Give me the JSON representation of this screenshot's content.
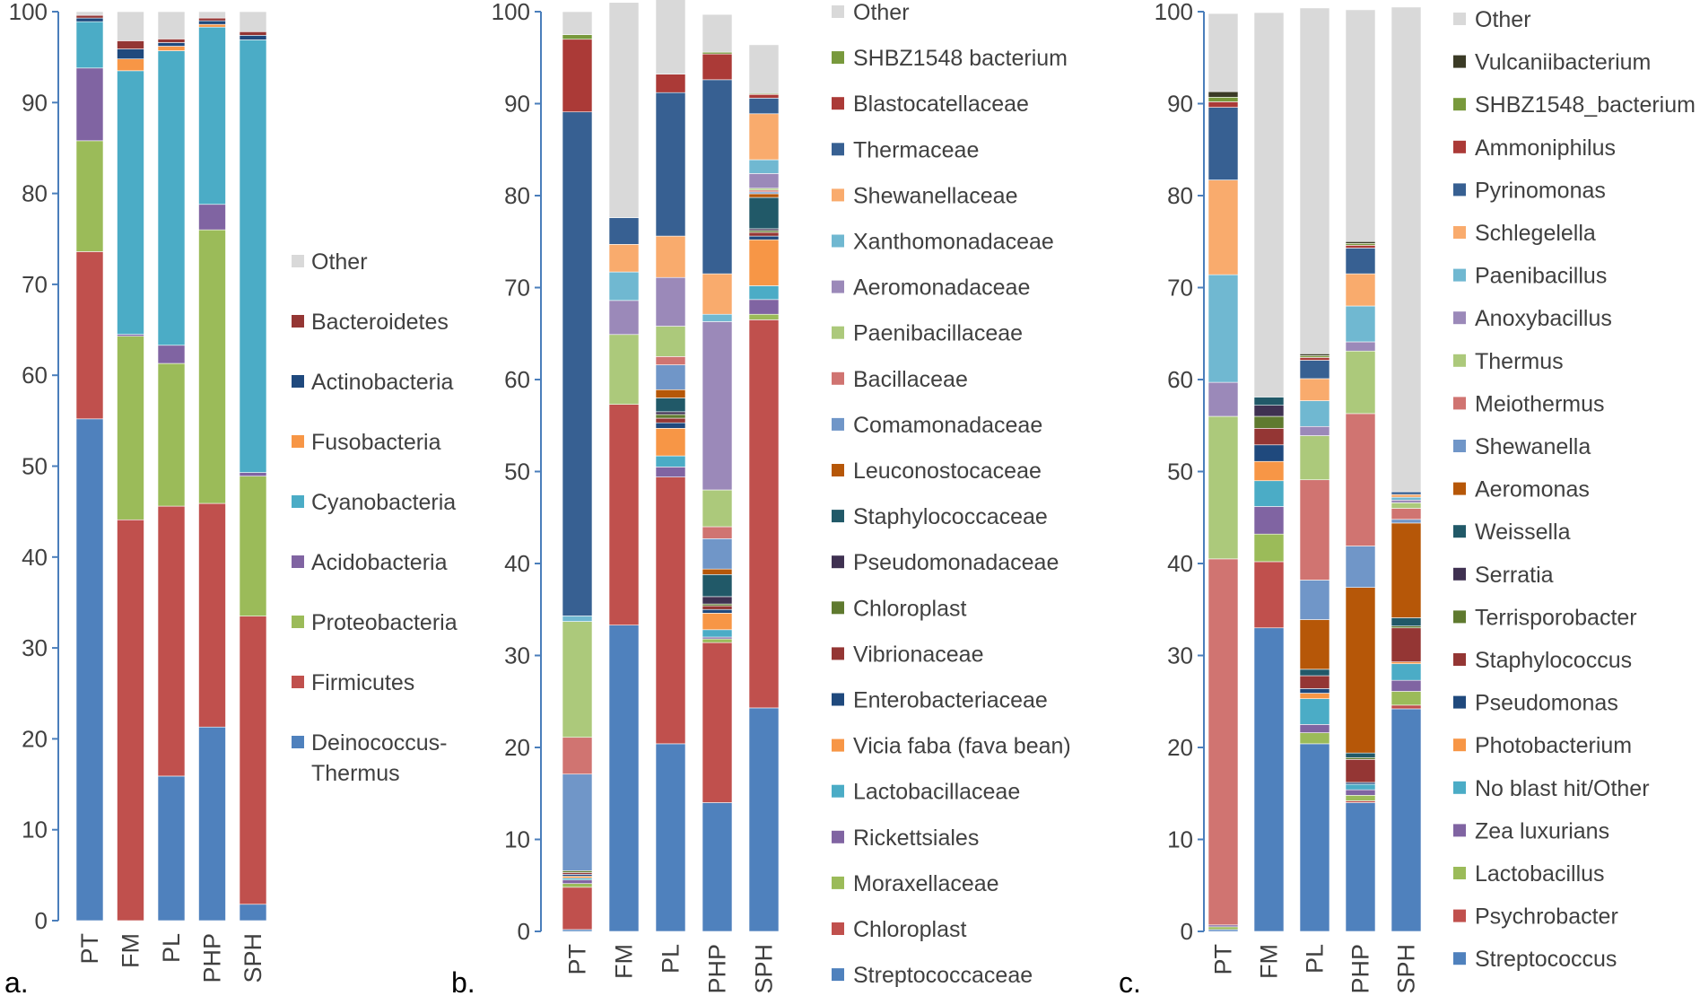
{
  "figure": {
    "panels": [
      "a.",
      "b.",
      "c."
    ]
  },
  "chart_data": [
    {
      "type": "bar",
      "stacked": true,
      "panel_label": "a.",
      "categories": [
        "PT",
        "FM",
        "PL",
        "PHP",
        "SPH"
      ],
      "yticks": [
        "0",
        "10",
        "20",
        "30",
        "40",
        "50",
        "60",
        "70",
        "80",
        "90",
        "100"
      ],
      "ylim": [
        0,
        100
      ],
      "series": [
        {
          "name": "Deinococcus-Thermus",
          "color": "#4f81bd",
          "values": [
            55.2,
            0,
            15.9,
            21.3,
            1.8
          ]
        },
        {
          "name": "Firmicutes",
          "color": "#c0504d",
          "values": [
            18.4,
            44.1,
            29.7,
            24.6,
            31.7
          ]
        },
        {
          "name": "Proteobacteria",
          "color": "#9bbb59",
          "values": [
            12.2,
            20.2,
            15.7,
            30.1,
            15.4
          ]
        },
        {
          "name": "Acidobacteria",
          "color": "#8064a2",
          "values": [
            8,
            0.2,
            2,
            2.8,
            0.4
          ]
        },
        {
          "name": "Cyanobacteria",
          "color": "#4bacc6",
          "values": [
            5.1,
            29,
            32.4,
            19.5,
            47.6
          ]
        },
        {
          "name": "Fusobacteria",
          "color": "#f79646",
          "values": [
            0,
            1.3,
            0.5,
            0.3,
            0
          ]
        },
        {
          "name": "Actinobacteria",
          "color": "#1f497d",
          "values": [
            0.4,
            1.1,
            0.4,
            0.4,
            0.5
          ]
        },
        {
          "name": "Bacteroidetes",
          "color": "#943634",
          "values": [
            0.3,
            0.9,
            0.4,
            0.3,
            0.4
          ]
        },
        {
          "name": "Other",
          "color": "#d9d9d9",
          "values": [
            0.4,
            3.2,
            3,
            0.7,
            2.2
          ]
        }
      ],
      "legend": [
        {
          "name": "Other",
          "color": "#d9d9d9"
        },
        {
          "name": "Bacteroidetes",
          "color": "#943634"
        },
        {
          "name": "Actinobacteria",
          "color": "#1f497d"
        },
        {
          "name": "Fusobacteria",
          "color": "#f79646"
        },
        {
          "name": "Cyanobacteria",
          "color": "#4bacc6"
        },
        {
          "name": "Acidobacteria",
          "color": "#8064a2"
        },
        {
          "name": "Proteobacteria",
          "color": "#9bbb59"
        },
        {
          "name": "Firmicutes",
          "color": "#c0504d"
        },
        {
          "name": "Deinococcus-",
          "line2": "Thermus",
          "color": "#4f81bd"
        }
      ]
    },
    {
      "type": "bar",
      "stacked": true,
      "panel_label": "b.",
      "categories": [
        "PT",
        "FM",
        "PL",
        "PHP",
        "SPH"
      ],
      "yticks": [
        "0",
        "10",
        "20",
        "30",
        "40",
        "50",
        "60",
        "70",
        "80",
        "90",
        "100"
      ],
      "ylim": [
        0,
        100
      ],
      "series": [
        {
          "name": "Streptococcaceae",
          "color": "#4f81bd",
          "values": [
            0.2,
            33.3,
            20.4,
            14,
            24.3
          ]
        },
        {
          "name": "Chloroplast",
          "color": "#c0504d",
          "values": [
            4.6,
            24,
            29,
            17.4,
            42.2
          ]
        },
        {
          "name": "Moraxellaceae",
          "color": "#9bbb59",
          "values": [
            0.4,
            0,
            0,
            0.4,
            0.6
          ]
        },
        {
          "name": "Rickettsiales",
          "color": "#8064a2",
          "values": [
            0.4,
            0,
            1.1,
            0.2,
            1.6
          ]
        },
        {
          "name": "Lactobacillaceae",
          "color": "#4bacc6",
          "values": [
            0.2,
            0,
            1.2,
            0.8,
            1.5
          ]
        },
        {
          "name": "Vicia faba (fava bean)",
          "color": "#f79646",
          "values": [
            0.2,
            0,
            3,
            1.8,
            5
          ]
        },
        {
          "name": "Enterobacteriaceae",
          "color": "#1f497d",
          "values": [
            0.2,
            0,
            0.6,
            0.4,
            0.4
          ]
        },
        {
          "name": "Vibrionaceae",
          "color": "#943634",
          "values": [
            0.2,
            0,
            0.5,
            0.4,
            0.4
          ]
        },
        {
          "name": "Chloroplast",
          "color": "#5f7a2f",
          "values": [
            0.2,
            0,
            0.4,
            0.2,
            0.2
          ]
        },
        {
          "name": "Pseudomonadaceae",
          "color": "#3f3151",
          "values": [
            0,
            0,
            0.3,
            0.8,
            0.2
          ]
        },
        {
          "name": "Staphylococcaceae",
          "color": "#215968",
          "values": [
            0,
            0,
            1.5,
            2.4,
            3.4
          ]
        },
        {
          "name": "Leuconostocaceae",
          "color": "#b65708",
          "values": [
            0,
            0,
            0.9,
            0.6,
            0.4
          ]
        },
        {
          "name": "Comamonadaceae",
          "color": "#7096c8",
          "values": [
            10.5,
            0,
            2.7,
            3.3,
            0.2
          ]
        },
        {
          "name": "Bacillaceae",
          "color": "#d07471",
          "values": [
            4,
            0,
            0.9,
            1.3,
            0.2
          ]
        },
        {
          "name": "Paenibacillaceae",
          "color": "#acc97b",
          "values": [
            12.6,
            7.6,
            3.3,
            4,
            0.2
          ]
        },
        {
          "name": "Aeromonadaceae",
          "color": "#9b89b9",
          "values": [
            0,
            3.7,
            5.3,
            18.3,
            1.6
          ]
        },
        {
          "name": "Xanthomonadaceae",
          "color": "#70b8d1",
          "values": [
            0.6,
            3.1,
            0,
            0.8,
            1.5
          ]
        },
        {
          "name": "Shewanellaceae",
          "color": "#f9ab6d",
          "values": [
            0,
            3,
            4.5,
            4.4,
            5
          ]
        },
        {
          "name": "Thermaceae",
          "color": "#376092",
          "values": [
            54.8,
            2.9,
            15.6,
            21.1,
            1.7
          ]
        },
        {
          "name": "Blastocatellaceae",
          "color": "#ab3a37",
          "values": [
            7.9,
            0,
            2,
            2.8,
            0.4
          ]
        },
        {
          "name": "SHBZ1548 bacterium",
          "color": "#78993c",
          "values": [
            0.5,
            0,
            0,
            0.2,
            0.1
          ]
        },
        {
          "name": "Other",
          "color": "#d9d9d9",
          "values": [
            2.5,
            23.4,
            8.3,
            4.1,
            5.3
          ]
        }
      ],
      "legend": [
        {
          "name": "Other",
          "color": "#d9d9d9"
        },
        {
          "name": "SHBZ1548 bacterium",
          "color": "#78993c"
        },
        {
          "name": "Blastocatellaceae",
          "color": "#ab3a37"
        },
        {
          "name": "Thermaceae",
          "color": "#376092"
        },
        {
          "name": "Shewanellaceae",
          "color": "#f9ab6d"
        },
        {
          "name": "Xanthomonadaceae",
          "color": "#70b8d1"
        },
        {
          "name": "Aeromonadaceae",
          "color": "#9b89b9"
        },
        {
          "name": "Paenibacillaceae",
          "color": "#acc97b"
        },
        {
          "name": "Bacillaceae",
          "color": "#d07471"
        },
        {
          "name": "Comamonadaceae",
          "color": "#7096c8"
        },
        {
          "name": "Leuconostocaceae",
          "color": "#b65708"
        },
        {
          "name": "Staphylococcaceae",
          "color": "#215968"
        },
        {
          "name": "Pseudomonadaceae",
          "color": "#3f3151"
        },
        {
          "name": "Chloroplast",
          "color": "#5f7a2f"
        },
        {
          "name": "Vibrionaceae",
          "color": "#943634"
        },
        {
          "name": "Enterobacteriaceae",
          "color": "#1f497d"
        },
        {
          "name": "Vicia faba (fava bean)",
          "color": "#f79646"
        },
        {
          "name": "Lactobacillaceae",
          "color": "#4bacc6"
        },
        {
          "name": "Rickettsiales",
          "color": "#8064a2"
        },
        {
          "name": "Moraxellaceae",
          "color": "#9bbb59"
        },
        {
          "name": "Chloroplast",
          "color": "#c0504d"
        },
        {
          "name": "Streptococcaceae",
          "color": "#4f81bd"
        }
      ]
    },
    {
      "type": "bar",
      "stacked": true,
      "panel_label": "c.",
      "categories": [
        "PT",
        "FM",
        "PL",
        "PHP",
        "SPH"
      ],
      "yticks": [
        "0",
        "10",
        "20",
        "30",
        "40",
        "50",
        "60",
        "70",
        "80",
        "90",
        "100"
      ],
      "ylim": [
        0,
        100
      ],
      "series": [
        {
          "name": "Streptococcus",
          "color": "#4f81bd",
          "values": [
            0.2,
            33,
            20.4,
            14,
            24.2
          ]
        },
        {
          "name": "Psychrobacter",
          "color": "#c0504d",
          "values": [
            0,
            7.2,
            0,
            0.2,
            0.4
          ]
        },
        {
          "name": "Lactobacillus",
          "color": "#9bbb59",
          "values": [
            0.3,
            3,
            1.2,
            0.6,
            1.5
          ]
        },
        {
          "name": "Zea luxurians",
          "color": "#8064a2",
          "values": [
            0.2,
            3,
            0.9,
            0.6,
            1.2
          ]
        },
        {
          "name": "No blast hit/Other",
          "color": "#4bacc6",
          "values": [
            0,
            2.8,
            2.8,
            0.6,
            1.8
          ]
        },
        {
          "name": "Photobacterium",
          "color": "#f79646",
          "values": [
            0,
            2.1,
            0.6,
            0,
            0.2
          ]
        },
        {
          "name": "Pseudomonas",
          "color": "#1f497d",
          "values": [
            0,
            1.8,
            0.5,
            0.2,
            0
          ]
        },
        {
          "name": "Staphylococcus",
          "color": "#943634",
          "values": [
            0,
            1.8,
            1.4,
            2.5,
            3.7
          ]
        },
        {
          "name": "Terrisporobacter",
          "color": "#5f7a2f",
          "values": [
            0,
            1.3,
            0,
            0.2,
            0.2
          ]
        },
        {
          "name": "Serratia",
          "color": "#3f3151",
          "values": [
            0,
            1.2,
            0,
            0,
            0
          ]
        },
        {
          "name": "Weissella",
          "color": "#215968",
          "values": [
            0,
            0.9,
            0.7,
            0.5,
            0.9
          ]
        },
        {
          "name": "Aeromonas",
          "color": "#b65708",
          "values": [
            0,
            0,
            5.4,
            18,
            10.3
          ]
        },
        {
          "name": "Shewanella",
          "color": "#7096c8",
          "values": [
            0,
            0,
            4.3,
            4.5,
            0.4
          ]
        },
        {
          "name": "Meiothermus",
          "color": "#d07471",
          "values": [
            39.8,
            0,
            10.9,
            14.4,
            1.2
          ]
        },
        {
          "name": "Thermus",
          "color": "#acc97b",
          "values": [
            15.5,
            0,
            4.8,
            6.8,
            0.6
          ]
        },
        {
          "name": "Anoxybacillus",
          "color": "#9b89b9",
          "values": [
            3.7,
            0,
            1,
            1,
            0.3
          ]
        },
        {
          "name": "Paenibacillus",
          "color": "#70b8d1",
          "values": [
            11.7,
            0,
            2.8,
            3.9,
            0.3
          ]
        },
        {
          "name": "Schlegelella",
          "color": "#f9ab6d",
          "values": [
            10.3,
            0,
            2.4,
            3.5,
            0.3
          ]
        },
        {
          "name": "Pyrinomonas",
          "color": "#376092",
          "values": [
            7.9,
            0,
            2,
            2.8,
            0.3
          ]
        },
        {
          "name": "Ammoniphilus",
          "color": "#ab3a37",
          "values": [
            0.6,
            0,
            0.3,
            0.3,
            0
          ]
        },
        {
          "name": "SHBZ1548_bacterium",
          "color": "#78993c",
          "values": [
            0.5,
            0,
            0.2,
            0.2,
            0
          ]
        },
        {
          "name": "Vulcaniibacterium",
          "color": "#3b3b26",
          "values": [
            0.6,
            0,
            0.2,
            0.2,
            0
          ]
        },
        {
          "name": "Other",
          "color": "#d9d9d9",
          "values": [
            8.5,
            41.8,
            37.6,
            25.2,
            52.7
          ]
        }
      ],
      "legend": [
        {
          "name": "Other",
          "color": "#d9d9d9"
        },
        {
          "name": "Vulcaniibacterium",
          "color": "#3b3b26"
        },
        {
          "name": "SHBZ1548_bacterium",
          "color": "#78993c"
        },
        {
          "name": "Ammoniphilus",
          "color": "#ab3a37"
        },
        {
          "name": "Pyrinomonas",
          "color": "#376092"
        },
        {
          "name": "Schlegelella",
          "color": "#f9ab6d"
        },
        {
          "name": "Paenibacillus",
          "color": "#70b8d1"
        },
        {
          "name": "Anoxybacillus",
          "color": "#9b89b9"
        },
        {
          "name": "Thermus",
          "color": "#acc97b"
        },
        {
          "name": "Meiothermus",
          "color": "#d07471"
        },
        {
          "name": "Shewanella",
          "color": "#7096c8"
        },
        {
          "name": "Aeromonas",
          "color": "#b65708"
        },
        {
          "name": "Weissella",
          "color": "#215968"
        },
        {
          "name": "Serratia",
          "color": "#3f3151"
        },
        {
          "name": "Terrisporobacter",
          "color": "#5f7a2f"
        },
        {
          "name": "Staphylococcus",
          "color": "#943634"
        },
        {
          "name": "Pseudomonas",
          "color": "#1f497d"
        },
        {
          "name": "Photobacterium",
          "color": "#f79646"
        },
        {
          "name": "No blast hit/Other",
          "color": "#4bacc6"
        },
        {
          "name": "Zea luxurians",
          "color": "#8064a2"
        },
        {
          "name": "Lactobacillus",
          "color": "#9bbb59"
        },
        {
          "name": "Psychrobacter",
          "color": "#c0504d"
        },
        {
          "name": "Streptococcus",
          "color": "#4f81bd"
        }
      ]
    }
  ]
}
